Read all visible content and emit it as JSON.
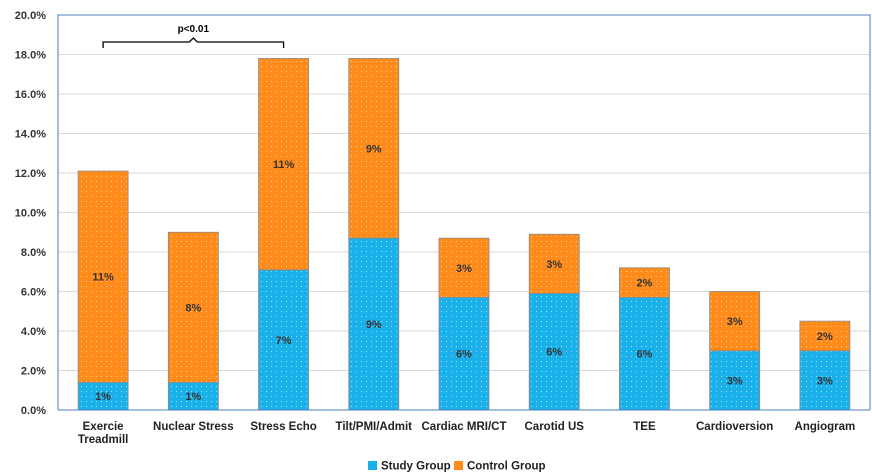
{
  "chart_data": {
    "type": "bar",
    "stacked": true,
    "categories": [
      [
        "Exercie",
        "Treadmill"
      ],
      [
        "Nuclear Stress"
      ],
      [
        "Stress Echo"
      ],
      [
        "Tilt/PMI/Admit"
      ],
      [
        "Cardiac MRI/CT"
      ],
      [
        "Carotid US"
      ],
      [
        "TEE"
      ],
      [
        "Cardioversion"
      ],
      [
        "Angiogram"
      ]
    ],
    "series": [
      {
        "name": "Study Group",
        "color": "#1ab0ea",
        "values": [
          1.4,
          1.4,
          7.1,
          8.7,
          5.7,
          5.9,
          5.7,
          3.0,
          3.0
        ],
        "labels": [
          "1%",
          "1%",
          "7%",
          "9%",
          "6%",
          "6%",
          "6%",
          "3%",
          "3%"
        ]
      },
      {
        "name": "Control Group",
        "color": "#ff8c1a",
        "values": [
          10.7,
          7.6,
          10.7,
          9.1,
          3.0,
          3.0,
          1.5,
          3.0,
          1.5
        ],
        "labels": [
          "11%",
          "8%",
          "11%",
          "9%",
          "3%",
          "3%",
          "2%",
          "3%",
          "2%"
        ]
      }
    ],
    "yticks": [
      "0.0%",
      "2.0%",
      "4.0%",
      "6.0%",
      "8.0%",
      "10.0%",
      "12.0%",
      "14.0%",
      "16.0%",
      "18.0%",
      "20.0%"
    ],
    "ylim": [
      0,
      20
    ],
    "grid": true,
    "legend_position": "bottom",
    "annotation": {
      "text": "p<0.01",
      "from_category": 0,
      "to_category": 2
    }
  }
}
